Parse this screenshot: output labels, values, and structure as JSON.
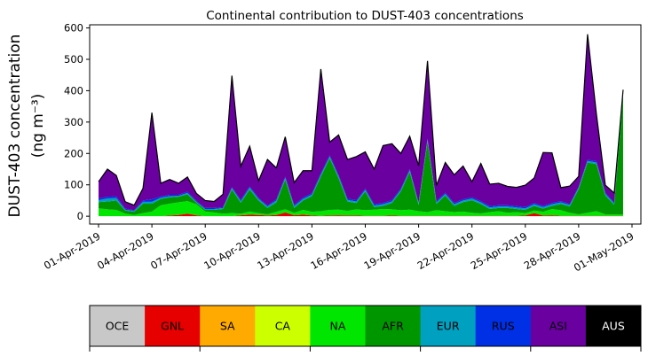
{
  "chart_data": {
    "type": "area",
    "stacked": true,
    "title": "Continental contribution to DUST-403 concentrations",
    "ylabel_line1": "DUST-403 concentration",
    "ylabel_line2": "(ng m⁻³)",
    "xlabel": "",
    "ylim": [
      -25,
      610
    ],
    "yticks": [
      0,
      100,
      200,
      300,
      400,
      500,
      600
    ],
    "xlim": [
      "2019-03-31T12:00",
      "2019-05-01T12:00"
    ],
    "xtick_dates": [
      "2019-04-01",
      "2019-04-04",
      "2019-04-07",
      "2019-04-10",
      "2019-04-13",
      "2019-04-16",
      "2019-04-19",
      "2019-04-22",
      "2019-04-25",
      "2019-04-28",
      "2019-05-01"
    ],
    "xtick_labels": [
      "01-Apr-2019",
      "04-Apr-2019",
      "07-Apr-2019",
      "10-Apr-2019",
      "13-Apr-2019",
      "16-Apr-2019",
      "19-Apr-2019",
      "22-Apr-2019",
      "25-Apr-2019",
      "28-Apr-2019",
      "01-May-2019"
    ],
    "grid": false,
    "legend_placement": "bottom, horizontal color bar",
    "x": [
      "2019-04-01T00:00",
      "2019-04-01T12:00",
      "2019-04-02T00:00",
      "2019-04-02T12:00",
      "2019-04-03T00:00",
      "2019-04-03T12:00",
      "2019-04-04T00:00",
      "2019-04-04T12:00",
      "2019-04-05T00:00",
      "2019-04-05T12:00",
      "2019-04-06T00:00",
      "2019-04-06T12:00",
      "2019-04-07T00:00",
      "2019-04-07T12:00",
      "2019-04-08T00:00",
      "2019-04-08T12:00",
      "2019-04-09T00:00",
      "2019-04-09T12:00",
      "2019-04-10T00:00",
      "2019-04-10T12:00",
      "2019-04-11T00:00",
      "2019-04-11T12:00",
      "2019-04-12T00:00",
      "2019-04-12T12:00",
      "2019-04-13T00:00",
      "2019-04-13T12:00",
      "2019-04-14T00:00",
      "2019-04-14T12:00",
      "2019-04-15T00:00",
      "2019-04-15T12:00",
      "2019-04-16T00:00",
      "2019-04-16T12:00",
      "2019-04-17T00:00",
      "2019-04-17T12:00",
      "2019-04-18T00:00",
      "2019-04-18T12:00",
      "2019-04-19T00:00",
      "2019-04-19T12:00",
      "2019-04-20T00:00",
      "2019-04-20T12:00",
      "2019-04-21T00:00",
      "2019-04-21T12:00",
      "2019-04-22T00:00",
      "2019-04-22T12:00",
      "2019-04-23T00:00",
      "2019-04-23T12:00",
      "2019-04-24T00:00",
      "2019-04-24T12:00",
      "2019-04-25T00:00",
      "2019-04-25T12:00",
      "2019-04-26T00:00",
      "2019-04-26T12:00",
      "2019-04-27T00:00",
      "2019-04-27T12:00",
      "2019-04-28T00:00",
      "2019-04-28T12:00",
      "2019-04-29T00:00",
      "2019-04-29T12:00",
      "2019-04-30T00:00",
      "2019-04-30T12:00"
    ],
    "series": [
      {
        "name": "OCE",
        "color": "#c8c8c8",
        "values": [
          0,
          0,
          0,
          0,
          0,
          0,
          0,
          0,
          0,
          0,
          0,
          0,
          0,
          0,
          0,
          0,
          0,
          0,
          0,
          0,
          0,
          0,
          0,
          0,
          0,
          0,
          0,
          0,
          0,
          0,
          0,
          0,
          0,
          0,
          0,
          0,
          0,
          0,
          0,
          0,
          0,
          0,
          0,
          0,
          0,
          0,
          0,
          0,
          0,
          0,
          0,
          0,
          0,
          0,
          0,
          0,
          0,
          0,
          0,
          0
        ]
      },
      {
        "name": "GNL",
        "color": "#e60000",
        "values": [
          0,
          0,
          0,
          0,
          0,
          0,
          0,
          0,
          2,
          4,
          8,
          3,
          0,
          0,
          0,
          0,
          3,
          5,
          4,
          2,
          4,
          12,
          3,
          5,
          2,
          1,
          2,
          3,
          2,
          2,
          1,
          1,
          1,
          2,
          1,
          1,
          1,
          1,
          1,
          1,
          1,
          1,
          1,
          1,
          1,
          1,
          1,
          1,
          2,
          10,
          2,
          3,
          1,
          1,
          1,
          1,
          1,
          1,
          1,
          1
        ]
      },
      {
        "name": "SA",
        "color": "#ffaa00",
        "values": [
          0,
          0,
          0,
          0,
          0,
          0,
          0,
          0,
          0,
          0,
          0,
          0,
          0,
          0,
          0,
          0,
          0,
          0,
          0,
          0,
          0,
          0,
          0,
          0,
          0,
          0,
          0,
          0,
          0,
          0,
          0,
          0,
          0,
          0,
          0,
          0,
          0,
          0,
          0,
          0,
          0,
          0,
          0,
          0,
          0,
          0,
          0,
          0,
          0,
          0,
          0,
          0,
          0,
          0,
          0,
          0,
          0,
          0,
          0,
          0
        ]
      },
      {
        "name": "CA",
        "color": "#ccff00",
        "values": [
          0,
          0,
          0,
          0,
          0,
          0,
          0,
          0,
          0,
          0,
          0,
          0,
          0,
          0,
          0,
          0,
          0,
          0,
          0,
          0,
          0,
          0,
          0,
          0,
          0,
          0,
          0,
          0,
          0,
          0,
          0,
          0,
          0,
          0,
          0,
          0,
          0,
          0,
          0,
          0,
          0,
          0,
          0,
          0,
          0,
          0,
          0,
          0,
          0,
          0,
          0,
          0,
          0,
          0,
          0,
          0,
          0,
          0,
          0,
          0
        ]
      },
      {
        "name": "NA",
        "color": "#00e600",
        "values": [
          25,
          22,
          20,
          8,
          4,
          10,
          15,
          35,
          38,
          40,
          40,
          35,
          15,
          12,
          8,
          10,
          5,
          10,
          6,
          4,
          10,
          10,
          8,
          15,
          12,
          15,
          18,
          18,
          15,
          20,
          18,
          20,
          22,
          20,
          18,
          20,
          15,
          12,
          18,
          15,
          12,
          14,
          10,
          8,
          12,
          15,
          10,
          12,
          8,
          8,
          12,
          20,
          18,
          10,
          5,
          10,
          15,
          5,
          5,
          5
        ]
      },
      {
        "name": "AFR",
        "color": "#009600",
        "values": [
          20,
          25,
          30,
          10,
          10,
          30,
          25,
          20,
          20,
          18,
          22,
          5,
          5,
          8,
          15,
          75,
          35,
          70,
          40,
          20,
          30,
          95,
          15,
          30,
          50,
          110,
          165,
          100,
          30,
          20,
          60,
          8,
          10,
          20,
          60,
          120,
          20,
          225,
          20,
          50,
          20,
          30,
          40,
          30,
          10,
          10,
          15,
          10,
          10,
          15,
          10,
          10,
          20,
          20,
          80,
          160,
          150,
          60,
          30,
          380
        ]
      },
      {
        "name": "EUR",
        "color": "#00a0c0",
        "values": [
          6,
          10,
          8,
          3,
          3,
          6,
          6,
          4,
          4,
          3,
          4,
          3,
          3,
          3,
          3,
          5,
          5,
          6,
          5,
          5,
          6,
          5,
          6,
          5,
          5,
          6,
          5,
          6,
          5,
          5,
          5,
          5,
          5,
          5,
          5,
          5,
          5,
          5,
          5,
          5,
          5,
          5,
          5,
          5,
          5,
          5,
          5,
          5,
          5,
          5,
          5,
          5,
          5,
          5,
          5,
          5,
          5,
          5,
          5,
          5
        ]
      },
      {
        "name": "RUS",
        "color": "#0030e6",
        "values": [
          5,
          5,
          5,
          3,
          2,
          4,
          8,
          4,
          4,
          3,
          4,
          3,
          3,
          3,
          3,
          3,
          4,
          4,
          3,
          3,
          4,
          4,
          4,
          4,
          4,
          4,
          4,
          4,
          4,
          4,
          4,
          4,
          4,
          4,
          4,
          4,
          3,
          4,
          4,
          4,
          4,
          4,
          4,
          4,
          4,
          4,
          4,
          4,
          4,
          4,
          4,
          4,
          4,
          3,
          3,
          4,
          4,
          3,
          3,
          3
        ]
      },
      {
        "name": "ASI",
        "color": "#6a00a0",
        "values": [
          54,
          88,
          67,
          22,
          16,
          39,
          276,
          42,
          49,
          37,
          47,
          24,
          24,
          21,
          41,
          355,
          107,
          128,
          55,
          147,
          100,
          127,
          71,
          86,
          72,
          333,
          42,
          128,
          125,
          139,
          117,
          112,
          183,
          180,
          112,
          105,
          117,
          248,
          50,
          96,
          90,
          106,
          50,
          120,
          70,
          70,
          60,
          60,
          70,
          80,
          170,
          160,
          43,
          57,
          33,
          400,
          150,
          25,
          30,
          9
        ]
      },
      {
        "name": "AUS",
        "color": "#000000",
        "values": [
          0,
          0,
          0,
          0,
          0,
          0,
          0,
          0,
          0,
          0,
          0,
          0,
          0,
          0,
          0,
          0,
          0,
          0,
          0,
          0,
          0,
          0,
          0,
          0,
          0,
          0,
          0,
          0,
          0,
          0,
          0,
          0,
          0,
          0,
          0,
          0,
          0,
          0,
          0,
          0,
          0,
          0,
          0,
          0,
          0,
          0,
          0,
          0,
          0,
          0,
          0,
          0,
          0,
          0,
          0,
          0,
          0,
          0,
          0,
          0
        ]
      }
    ]
  }
}
